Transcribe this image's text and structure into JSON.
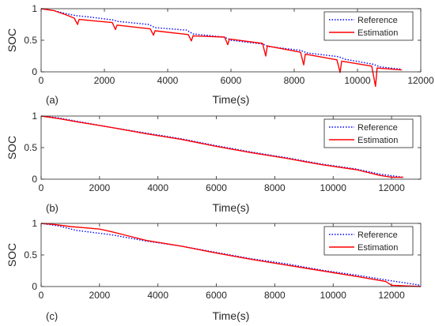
{
  "chart_data": [
    {
      "type": "line",
      "panel_label": "(a)",
      "xlabel": "Time(s)",
      "ylabel": "SOC",
      "xlim": [
        0,
        12000
      ],
      "ylim": [
        0,
        1
      ],
      "xticks": [
        0,
        2000,
        4000,
        6000,
        8000,
        10000,
        12000
      ],
      "yticks": [
        0,
        0.5,
        1
      ],
      "xtick_labels": [
        "0",
        "2000",
        "4000",
        "6000",
        "8000",
        "10000",
        "12000"
      ],
      "ytick_labels": [
        "0",
        "0.5",
        "1"
      ],
      "legend_position": "top-right",
      "series": [
        {
          "name": "Reference",
          "color": "#0000ff",
          "style": "dotted",
          "x": [
            0,
            400,
            800,
            1100,
            1500,
            2300,
            2400,
            3400,
            3600,
            4600,
            4800,
            5800,
            6000,
            7000,
            7200,
            8200,
            8400,
            9400,
            9600,
            10500,
            10700,
            11400
          ],
          "y": [
            1.0,
            0.97,
            0.92,
            0.89,
            0.87,
            0.82,
            0.8,
            0.75,
            0.7,
            0.66,
            0.6,
            0.55,
            0.5,
            0.44,
            0.4,
            0.34,
            0.3,
            0.24,
            0.2,
            0.12,
            0.08,
            0.04
          ]
        },
        {
          "name": "Estimation",
          "color": "#ff0000",
          "style": "solid",
          "x": [
            0,
            400,
            800,
            1050,
            1150,
            1200,
            2250,
            2350,
            2400,
            3450,
            3550,
            3600,
            4650,
            4750,
            4800,
            5800,
            5900,
            5950,
            7000,
            7100,
            7150,
            8200,
            8300,
            8350,
            9350,
            9450,
            9500,
            10450,
            10570,
            10620,
            11400
          ],
          "y": [
            1.0,
            0.97,
            0.9,
            0.85,
            0.75,
            0.83,
            0.78,
            0.67,
            0.74,
            0.68,
            0.58,
            0.65,
            0.59,
            0.49,
            0.57,
            0.55,
            0.43,
            0.52,
            0.45,
            0.25,
            0.41,
            0.31,
            0.11,
            0.28,
            0.19,
            -0.01,
            0.17,
            0.09,
            -0.23,
            0.06,
            0.03
          ]
        }
      ]
    },
    {
      "type": "line",
      "panel_label": "(b)",
      "xlabel": "Time(s)",
      "ylabel": "SOC",
      "xlim": [
        0,
        13000
      ],
      "ylim": [
        0,
        1
      ],
      "xticks": [
        0,
        2000,
        4000,
        6000,
        8000,
        10000,
        12000
      ],
      "yticks": [
        0,
        0.5,
        1
      ],
      "xtick_labels": [
        "0",
        "2000",
        "4000",
        "6000",
        "8000",
        "10000",
        "12000"
      ],
      "ytick_labels": [
        "0",
        "0.5",
        "1"
      ],
      "legend_position": "top-right",
      "series": [
        {
          "name": "Reference",
          "color": "#0000ff",
          "style": "dotted",
          "x": [
            0,
            600,
            1200,
            2400,
            3600,
            4800,
            6000,
            7200,
            8400,
            9600,
            10800,
            11600,
            12400
          ],
          "y": [
            1.0,
            0.97,
            0.92,
            0.82,
            0.73,
            0.64,
            0.53,
            0.43,
            0.34,
            0.24,
            0.16,
            0.08,
            0.03
          ]
        },
        {
          "name": "Estimation",
          "color": "#ff0000",
          "style": "solid",
          "x": [
            0,
            600,
            1200,
            2400,
            3600,
            4800,
            6000,
            7200,
            8400,
            9600,
            10800,
            11600,
            12000,
            12400
          ],
          "y": [
            1.0,
            0.96,
            0.91,
            0.82,
            0.72,
            0.63,
            0.52,
            0.42,
            0.33,
            0.23,
            0.15,
            0.06,
            0.03,
            0.03
          ]
        }
      ]
    },
    {
      "type": "line",
      "panel_label": "(c)",
      "xlabel": "Time(s)",
      "ylabel": "SOC",
      "xlim": [
        0,
        13000
      ],
      "ylim": [
        0,
        1
      ],
      "xticks": [
        0,
        2000,
        4000,
        6000,
        8000,
        10000,
        12000
      ],
      "yticks": [
        0,
        0.5,
        1
      ],
      "xtick_labels": [
        "0",
        "2000",
        "4000",
        "6000",
        "8000",
        "10000",
        "12000"
      ],
      "ytick_labels": [
        "0",
        "0.5",
        "1"
      ],
      "legend_position": "top-right",
      "series": [
        {
          "name": "Reference",
          "color": "#0000ff",
          "style": "dotted",
          "x": [
            0,
            600,
            1200,
            2400,
            3600,
            4800,
            6000,
            7200,
            8400,
            9600,
            10800,
            12000,
            13000
          ],
          "y": [
            1.0,
            0.96,
            0.89,
            0.82,
            0.72,
            0.64,
            0.54,
            0.44,
            0.36,
            0.26,
            0.18,
            0.09,
            0.02
          ]
        },
        {
          "name": "Estimation",
          "color": "#ff0000",
          "style": "solid",
          "x": [
            0,
            500,
            1000,
            1500,
            2000,
            2400,
            3000,
            3600,
            4800,
            6000,
            7200,
            8400,
            9600,
            10800,
            11800,
            12000,
            13000
          ],
          "y": [
            1.0,
            0.98,
            0.95,
            0.93,
            0.91,
            0.87,
            0.8,
            0.73,
            0.64,
            0.53,
            0.43,
            0.34,
            0.25,
            0.16,
            0.08,
            0.02,
            0.0
          ]
        }
      ]
    }
  ]
}
